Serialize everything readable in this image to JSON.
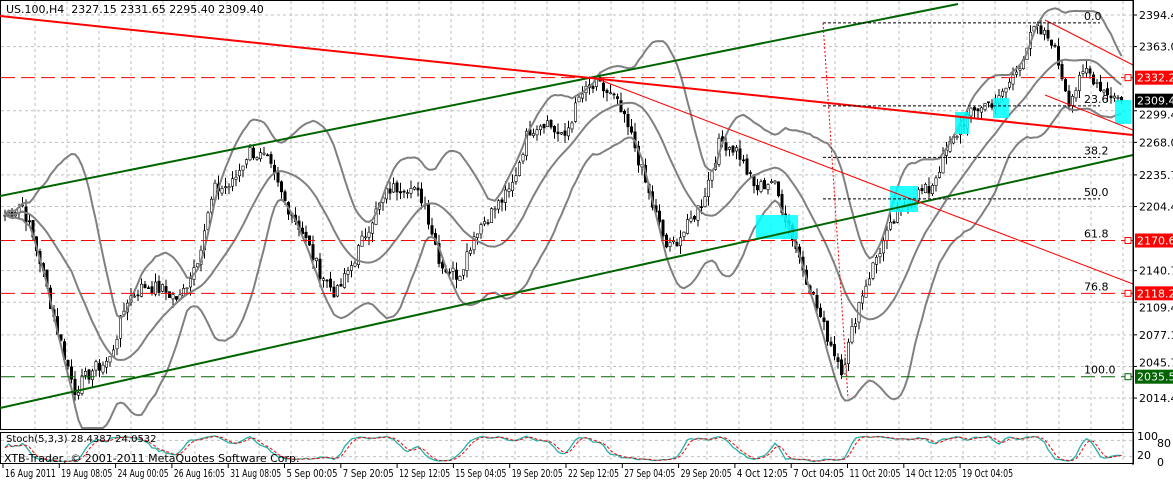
{
  "header": {
    "symbol": "US.100,H4",
    "open": "2327.15",
    "high": "2331.65",
    "low": "2295.40",
    "close": "2309.40"
  },
  "stoch_label": "Stoch(5,3,3) 28.4387 24.0532",
  "copyright": "XTB-Trader, © 2001-2011 MetaQuotes Software Corp.",
  "chart_data": {
    "type": "candlestick",
    "title": "US.100,H4",
    "ylim": [
      2014.4,
      2394.4
    ],
    "grid": true,
    "price_ticks": [
      "2394.40",
      "2363.05",
      "2299.40",
      "2268.05",
      "2235.75",
      "2204.40",
      "2140.75",
      "2109.40",
      "2077.10",
      "2045.75",
      "2014.40"
    ],
    "time_ticks": [
      "16 Aug 2011",
      "19 Aug 08:05",
      "24 Aug 00:05",
      "26 Aug 16:05",
      "31 Aug 08:05",
      "5 Sep 00:05",
      "7 Sep 20:05",
      "12 Sep 12:05",
      "15 Sep 04:05",
      "19 Sep 20:05",
      "22 Sep 12:05",
      "27 Sep 04:05",
      "29 Sep 20:05",
      "4 Oct 12:05",
      "7 Oct 04:05",
      "11 Oct 20:05",
      "14 Oct 12:05",
      "19 Oct 04:05"
    ],
    "approx_close_path": [
      2196,
      2206,
      2151,
      2082,
      2022,
      2042,
      2052,
      2112,
      2126,
      2122,
      2112,
      2151,
      2221,
      2226,
      2260,
      2251,
      2211,
      2181,
      2141,
      2117,
      2151,
      2191,
      2221,
      2226,
      2211,
      2146,
      2136,
      2181,
      2201,
      2221,
      2280,
      2290,
      2270,
      2315,
      2325,
      2310,
      2270,
      2211,
      2161,
      2181,
      2211,
      2270,
      2260,
      2221,
      2231,
      2181,
      2131,
      2082,
      2042,
      2112,
      2156,
      2191,
      2216,
      2221,
      2260,
      2290,
      2305,
      2310,
      2340,
      2380,
      2370,
      2310,
      2340,
      2320,
      2309.4
    ],
    "price_lines": [
      {
        "label": "2332.24",
        "price": 2332.24,
        "color": "#ff0000"
      },
      {
        "label": "2170.69",
        "price": 2170.69,
        "color": "#ff0000"
      },
      {
        "label": "2118.29",
        "price": 2118.29,
        "color": "#ff0000"
      },
      {
        "label": "2035.57",
        "price": 2035.57,
        "color": "#006400"
      }
    ],
    "current_price": "2309.40",
    "fibonacci": [
      {
        "level": "0.0",
        "price": 2386.6
      },
      {
        "level": "23.6",
        "price": 2304.2
      },
      {
        "level": "38.2",
        "price": 2253.2
      },
      {
        "level": "50.0",
        "price": 2212.0
      },
      {
        "level": "61.8",
        "price": 2170.69
      },
      {
        "level": "76.8",
        "price": 2118.29
      },
      {
        "level": "100.0",
        "price": 2035.57
      }
    ],
    "indicators": [
      "Bollinger Bands",
      "Stoch(5,3,3)"
    ],
    "stoch_ticks": [
      "100",
      "80",
      "20",
      "0"
    ],
    "stoch_values": {
      "main": 28.4387,
      "signal": 24.0532
    },
    "colors": {
      "trend_up": "#006400",
      "trend_down": "#ff0000",
      "bands": "#808080",
      "stoch_main": "#20b2aa",
      "stoch_signal": "#ff0000",
      "highlight": "#00ffff"
    }
  }
}
